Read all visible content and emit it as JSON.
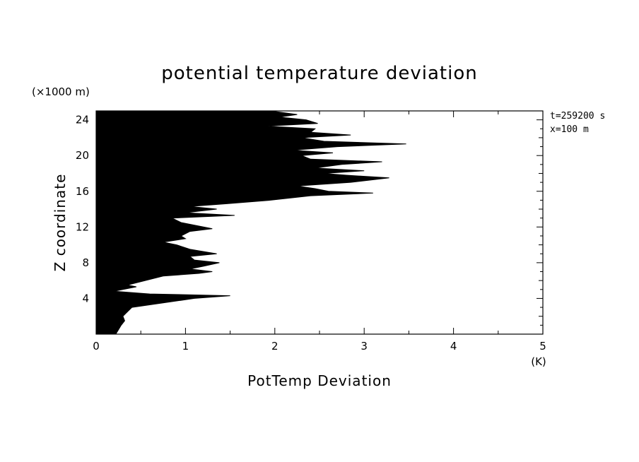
{
  "chart_data": {
    "type": "area",
    "title": "potential temperature deviation",
    "xlabel": "PotTemp Deviation",
    "ylabel": "Z coordinate",
    "x_unit": "(K)",
    "y_unit": "(×1000 m)",
    "annotations": [
      "t=259200 s",
      "x=100 m"
    ],
    "xlim": [
      0,
      5
    ],
    "ylim": [
      0,
      25
    ],
    "x_ticks": [
      0,
      1,
      2,
      3,
      4,
      5
    ],
    "y_ticks": [
      4,
      8,
      12,
      16,
      20,
      24
    ],
    "grid": false,
    "legend": "none",
    "fill_color": "#000000",
    "profile": {
      "z": [
        0.0,
        0.5,
        1.0,
        1.5,
        2.0,
        2.5,
        3.0,
        3.5,
        4.0,
        4.3,
        4.5,
        4.8,
        5.0,
        5.3,
        5.5,
        6.0,
        6.5,
        6.8,
        7.0,
        7.3,
        7.6,
        8.0,
        8.3,
        8.7,
        9.0,
        9.5,
        10.0,
        10.3,
        10.7,
        11.0,
        11.5,
        11.8,
        12.0,
        12.5,
        13.0,
        13.3,
        13.6,
        14.0,
        14.3,
        14.6,
        15.0,
        15.5,
        15.8,
        16.0,
        16.3,
        16.6,
        17.0,
        17.5,
        17.8,
        18.0,
        18.3,
        18.6,
        19.0,
        19.3,
        19.6,
        20.0,
        20.3,
        20.6,
        21.0,
        21.3,
        21.6,
        22.0,
        22.3,
        22.6,
        23.0,
        23.3,
        23.6,
        24.0,
        24.3,
        24.6,
        25.0
      ],
      "dev": [
        0.22,
        0.25,
        0.28,
        0.32,
        0.3,
        0.35,
        0.4,
        0.75,
        1.1,
        1.5,
        0.6,
        0.2,
        0.3,
        0.45,
        0.35,
        0.55,
        0.75,
        1.15,
        1.3,
        1.05,
        1.2,
        1.38,
        1.1,
        1.05,
        1.35,
        1.05,
        0.9,
        0.75,
        1.0,
        0.95,
        1.05,
        1.3,
        1.2,
        0.95,
        0.85,
        1.55,
        1.0,
        1.35,
        1.05,
        1.45,
        1.95,
        2.4,
        3.1,
        2.6,
        2.45,
        2.25,
        2.85,
        3.28,
        2.8,
        2.55,
        3.0,
        2.45,
        2.75,
        3.2,
        2.4,
        2.3,
        2.65,
        2.2,
        2.7,
        3.47,
        2.55,
        2.3,
        2.85,
        2.4,
        2.45,
        1.9,
        2.48,
        2.35,
        2.05,
        2.25,
        1.95
      ]
    }
  }
}
